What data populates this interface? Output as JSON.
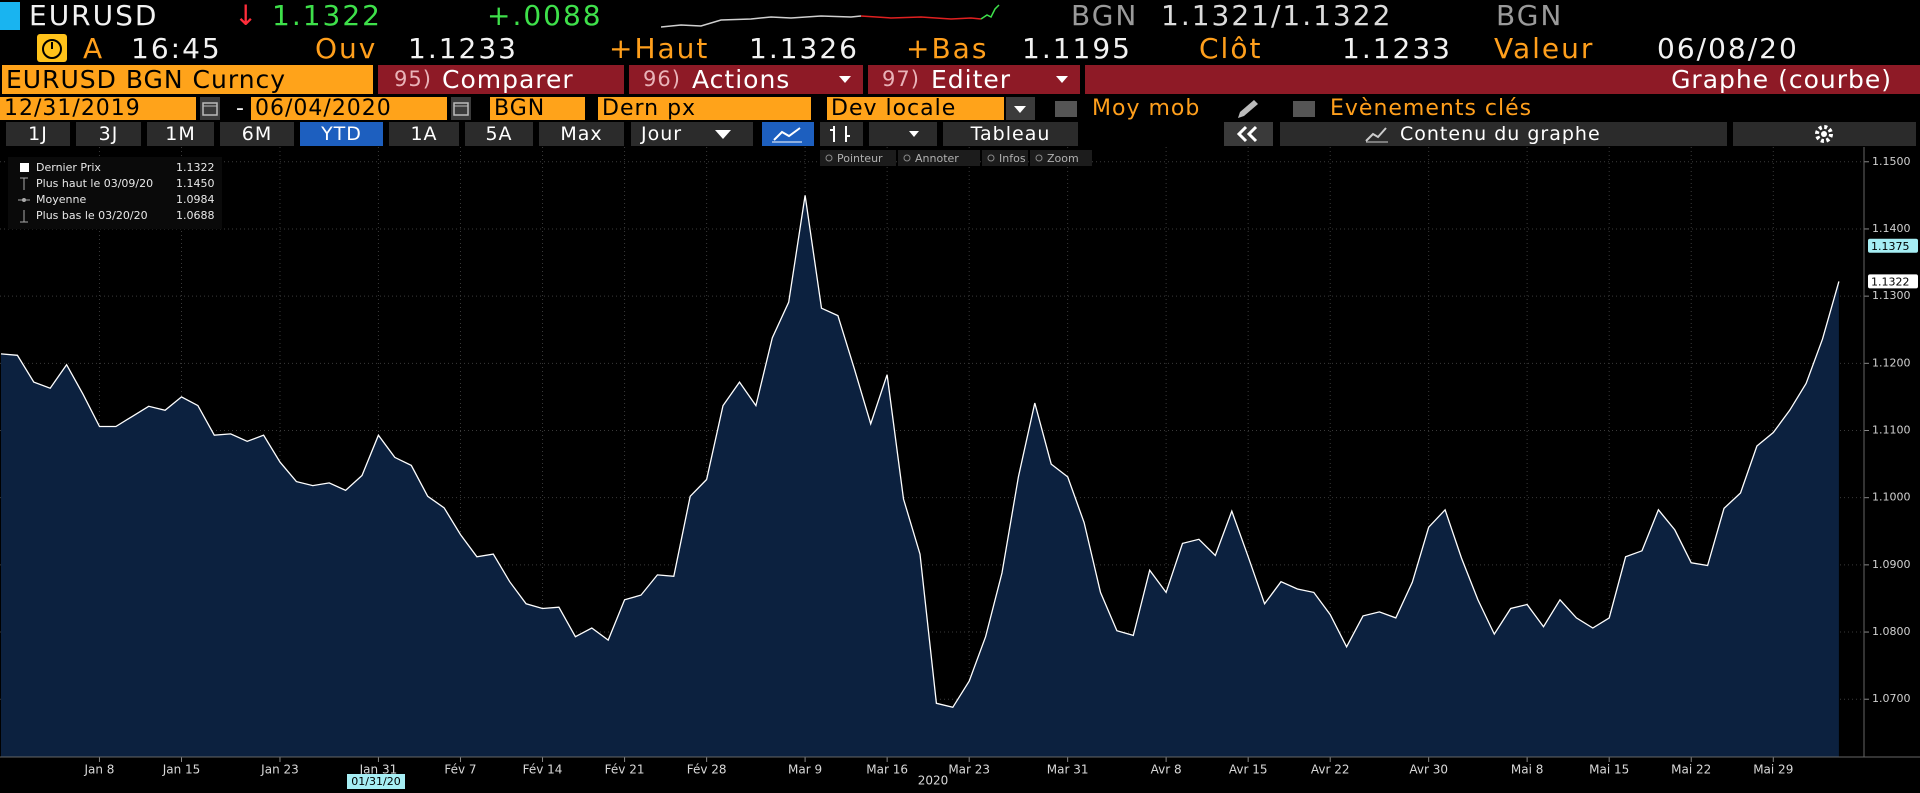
{
  "header": {
    "ticker": "EURUSD",
    "direction": "↓",
    "last": "1.1322",
    "change": "+.0088",
    "bid_source": "BGN",
    "bid_ask": "1.1321/1.1322",
    "ask_source": "BGN"
  },
  "quote": {
    "flag": "A",
    "time": "16:45",
    "open_label": "Ouv",
    "open": "1.1233",
    "high_label": "+Haut",
    "high": "1.1326",
    "low_label": "+Bas",
    "low": "1.1195",
    "close_label": "Clôt",
    "close": "1.1233",
    "date_label": "Valeur",
    "date": "06/08/20"
  },
  "menu": {
    "security": "EURUSD BGN Curncy",
    "items": [
      {
        "number": "95)",
        "label": "Comparer"
      },
      {
        "number": "96)",
        "label": "Actions"
      },
      {
        "number": "97)",
        "label": "Editer"
      }
    ],
    "view": "Graphe (courbe)"
  },
  "settings": {
    "start": "12/31/2019",
    "separator": "-",
    "end": "06/04/2020",
    "source": "BGN",
    "field": "Dern px",
    "currency": "Dev locale",
    "moving_average": "Moy mob",
    "events": "Evènements clés"
  },
  "toolbar": {
    "periods": [
      "1J",
      "3J",
      "1M",
      "6M",
      "YTD",
      "1A",
      "5A",
      "Max"
    ],
    "frequency": "Jour",
    "table": "Tableau",
    "chart_content": "Contenu du graphe"
  },
  "tools": [
    "Pointeur",
    "Annoter",
    "Infos",
    "Zoom"
  ],
  "chart_data": {
    "type": "area",
    "legend": [
      {
        "label": "Dernier Prix",
        "value": "1.1322"
      },
      {
        "label": "Plus haut le 03/09/20",
        "value": "1.1450"
      },
      {
        "label": "Moyenne",
        "value": "1.0984"
      },
      {
        "label": "Plus bas le 03/20/20",
        "value": "1.0688"
      }
    ],
    "categories": [
      null,
      null,
      null,
      null,
      null,
      null,
      "Jan 8",
      null,
      null,
      null,
      null,
      "Jan 15",
      null,
      null,
      null,
      null,
      null,
      "Jan 23",
      null,
      null,
      null,
      null,
      null,
      "Jan 31",
      null,
      null,
      null,
      null,
      "Fév 7",
      null,
      null,
      null,
      null,
      "Fév 14",
      null,
      null,
      null,
      null,
      "Fév 21",
      null,
      null,
      null,
      null,
      "Fév 28",
      null,
      null,
      null,
      null,
      null,
      "Mar 9",
      null,
      null,
      null,
      null,
      "Mar 16",
      null,
      null,
      null,
      null,
      "Mar 23",
      null,
      null,
      null,
      null,
      null,
      "Mar 31",
      null,
      null,
      null,
      null,
      null,
      "Avr 8",
      null,
      null,
      null,
      null,
      "Avr 15",
      null,
      null,
      null,
      null,
      "Avr 22",
      null,
      null,
      null,
      null,
      null,
      "Avr 30",
      null,
      null,
      null,
      null,
      null,
      "Mai 8",
      null,
      null,
      null,
      null,
      "Mai 15",
      null,
      null,
      null,
      null,
      "Mai 22",
      null,
      null,
      null,
      null,
      "Mai 29",
      null,
      null,
      null,
      null
    ],
    "series": [
      {
        "color": "#ffffff",
        "fill": "#0c213f",
        "values": [
          1.1214,
          1.1212,
          1.1172,
          1.1163,
          1.1198,
          1.1154,
          1.1106,
          1.1106,
          1.1121,
          1.1136,
          1.113,
          1.115,
          1.1137,
          1.1093,
          1.1095,
          1.1084,
          1.1093,
          1.1053,
          1.1024,
          1.1018,
          1.1022,
          1.1011,
          1.1033,
          1.1093,
          1.106,
          1.1048,
          1.1002,
          1.0985,
          1.0945,
          1.0912,
          1.0916,
          1.0875,
          1.0842,
          1.0835,
          1.0837,
          1.0793,
          1.0806,
          1.0788,
          1.0848,
          1.0855,
          1.0885,
          1.0883,
          1.1002,
          1.1027,
          1.1137,
          1.1172,
          1.1137,
          1.1238,
          1.1291,
          1.145,
          1.1282,
          1.1271,
          1.1192,
          1.111,
          1.1183,
          1.0998,
          1.0916,
          1.0694,
          1.0688,
          1.0727,
          1.0793,
          1.0888,
          1.1031,
          1.1141,
          1.105,
          1.1031,
          1.0963,
          1.0859,
          1.0802,
          1.0795,
          1.0892,
          1.0859,
          1.0932,
          1.0938,
          1.0914,
          1.098,
          1.0912,
          1.0842,
          1.0875,
          1.0864,
          1.0859,
          1.0826,
          1.0778,
          1.0824,
          1.083,
          1.0821,
          1.0874,
          1.0956,
          1.0982,
          1.091,
          1.0848,
          1.0797,
          1.0835,
          1.0841,
          1.0808,
          1.0848,
          1.0821,
          1.0806,
          1.0821,
          1.0912,
          1.0921,
          1.0982,
          1.0952,
          1.0903,
          1.0899,
          1.0984,
          1.1007,
          1.1077,
          1.1097,
          1.113,
          1.117,
          1.1236,
          1.1322
        ]
      }
    ],
    "ylim": [
      1.0614,
      1.1522
    ],
    "yticks": [
      {
        "value": 1.07,
        "label": "1.0700"
      },
      {
        "value": 1.08,
        "label": "1.0800"
      },
      {
        "value": 1.09,
        "label": "1.0900"
      },
      {
        "value": 1.1,
        "label": "1.1000"
      },
      {
        "value": 1.11,
        "label": "1.1100"
      },
      {
        "value": 1.12,
        "label": "1.1200"
      },
      {
        "value": 1.13,
        "label": "1.1300"
      },
      {
        "value": 1.14,
        "label": "1.1400"
      },
      {
        "value": 1.15,
        "label": "1.1500"
      }
    ],
    "price_tags": [
      {
        "value": 1.1375,
        "color": "#a6eef4"
      },
      {
        "value": 1.1322,
        "color": "#ffffff"
      }
    ],
    "crosshair_date": "01/31/20",
    "year": "2020",
    "grid": true
  }
}
